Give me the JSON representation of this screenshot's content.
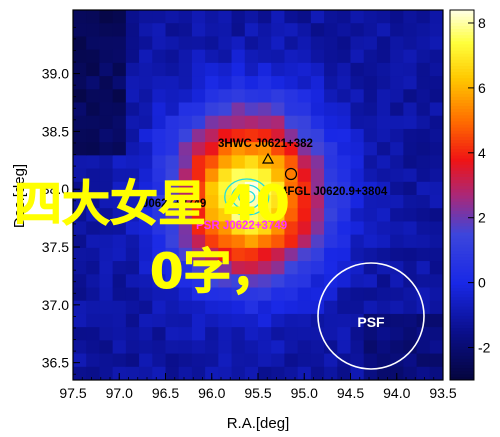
{
  "chart_data": {
    "type": "heatmap",
    "xlabel": "R.A.[deg]",
    "ylabel": "Dec.[deg]",
    "x_ticks": [
      "97.5",
      "97.0",
      "96.5",
      "96.0",
      "95.5",
      "95.0",
      "94.5",
      "94.0",
      "93.5"
    ],
    "y_ticks": [
      "36.5",
      "37.0",
      "37.5",
      "38.0",
      "38.5",
      "39.0"
    ],
    "xlim": [
      97.5,
      93.5
    ],
    "ylim": [
      36.35,
      39.55
    ],
    "colorbar": {
      "ticks": [
        "-2",
        "0",
        "2",
        "4",
        "6",
        "8"
      ],
      "range": [
        -3,
        8.4
      ]
    },
    "peak": {
      "ra": 95.6,
      "dec": 37.95,
      "value": 8.2
    },
    "annotations": [
      {
        "text": "3HWC J0621+382",
        "color": "#000000"
      },
      {
        "text": "4FGL J0620.9+3804",
        "color": "#000000"
      },
      {
        "text": "J0622+3749",
        "color": "#000000"
      },
      {
        "text": "PSR J0622+3749",
        "color": "#ff33ff"
      },
      {
        "text": "PSF",
        "color": "#ffffff"
      }
    ],
    "markers": [
      {
        "type": "triangle",
        "ra": 95.55,
        "dec": 38.22
      },
      {
        "type": "circle",
        "ra": 95.22,
        "dec": 38.11
      }
    ]
  },
  "overlay_text": {
    "line1": "四大女星 40",
    "line2": "0字，"
  },
  "colors": {
    "cyan_contour": "#22dddd",
    "psf_circle": "#ffffff",
    "psr_label": "#ff33ff",
    "overlay": "#ffff00"
  }
}
